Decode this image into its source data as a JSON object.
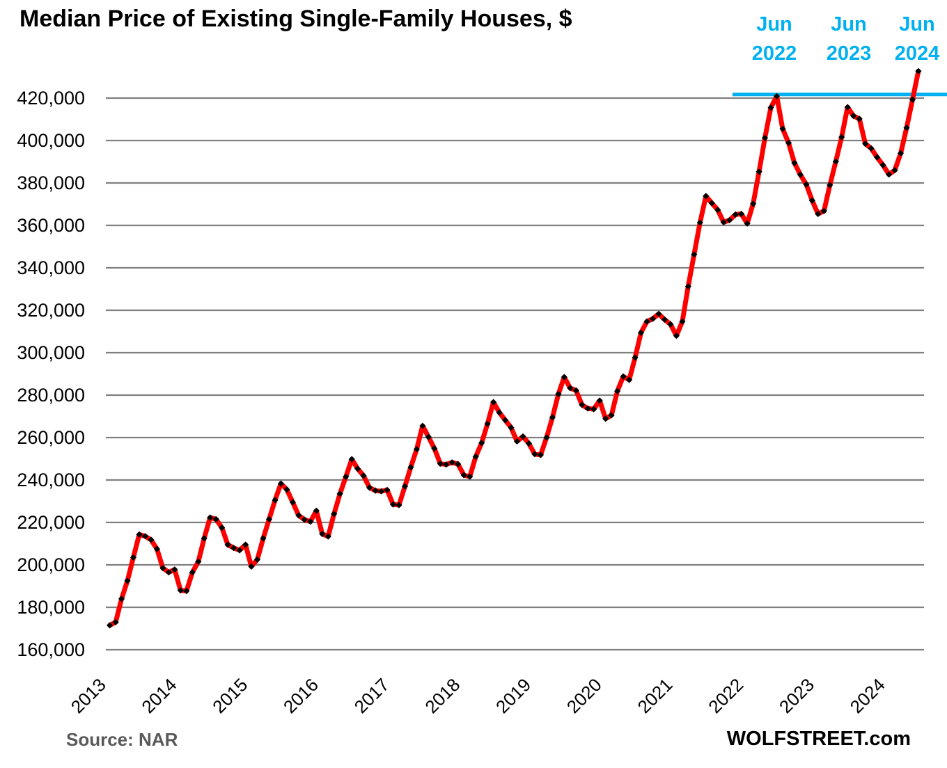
{
  "title": "Median Price of Existing Single-Family Houses, $",
  "footer": {
    "source": "Source: NAR",
    "brand": "WOLFSTREET.com"
  },
  "annotations": {
    "peak_label_color": "#00B0F0",
    "peak_labels": [
      {
        "line1": "Jun",
        "line2": "2022",
        "month_index": 113
      },
      {
        "line1": "Jun",
        "line2": "2023",
        "month_index": 125
      },
      {
        "line1": "Jun",
        "line2": "2024",
        "month_index": 137
      }
    ]
  },
  "chart_data": {
    "type": "line",
    "title": "Median Price of Existing Single-Family Houses, $",
    "xlabel": "",
    "ylabel": "",
    "unit": "$",
    "frequency": "monthly",
    "start_month": "2013-01",
    "end_month": "2024-06",
    "ylim": [
      160000,
      420000
    ],
    "ytick_step": 20000,
    "ytick_labels": [
      "160,000",
      "180,000",
      "200,000",
      "220,000",
      "240,000",
      "260,000",
      "280,000",
      "300,000",
      "320,000",
      "340,000",
      "360,000",
      "380,000",
      "400,000",
      "420,000"
    ],
    "x_year_ticks": [
      2013,
      2014,
      2015,
      2016,
      2017,
      2018,
      2019,
      2020,
      2021,
      2022,
      2023,
      2024
    ],
    "grid": "horizontal-only",
    "gridline_color": "#808080",
    "ref_line": {
      "value": 420900,
      "color": "#00B0F0",
      "note": "Jun 2022 peak level extended to Jun 2024"
    },
    "series": [
      {
        "name": "Median price of existing single-family houses",
        "color": "#FF0000",
        "marker": "black-diamond",
        "marker_color": "#000000",
        "values": [
          171500,
          173000,
          184000,
          192500,
          203500,
          214300,
          213500,
          211800,
          207500,
          198500,
          196500,
          197800,
          188000,
          187700,
          196500,
          201500,
          212500,
          222300,
          221500,
          217500,
          209500,
          208000,
          206900,
          209500,
          199200,
          202500,
          212500,
          221500,
          230500,
          238300,
          235500,
          229500,
          223300,
          221300,
          220400,
          225500,
          214600,
          213400,
          224000,
          233500,
          241500,
          249800,
          245300,
          242000,
          236400,
          235000,
          234700,
          235300,
          228500,
          228200,
          237000,
          246000,
          254500,
          265500,
          260300,
          254900,
          247700,
          247300,
          248300,
          247500,
          242300,
          241600,
          251000,
          257500,
          266500,
          276700,
          271800,
          268200,
          264700,
          258200,
          260500,
          257200,
          252200,
          251800,
          260000,
          269500,
          280500,
          288500,
          283300,
          282200,
          275400,
          273700,
          273400,
          277400,
          268900,
          270500,
          281900,
          288800,
          287200,
          297700,
          309400,
          314700,
          316000,
          318300,
          315600,
          313400,
          308000,
          314700,
          331200,
          346300,
          361300,
          373800,
          370500,
          367300,
          361500,
          362500,
          365100,
          365400,
          360900,
          370200,
          385300,
          401200,
          415500,
          420900,
          405500,
          398900,
          389400,
          383900,
          379300,
          371700,
          365400,
          366800,
          379000,
          390100,
          401600,
          415700,
          411600,
          410200,
          398500,
          396300,
          392100,
          388400,
          384000,
          386000,
          394000,
          406000,
          419300,
          432700
        ]
      }
    ]
  }
}
